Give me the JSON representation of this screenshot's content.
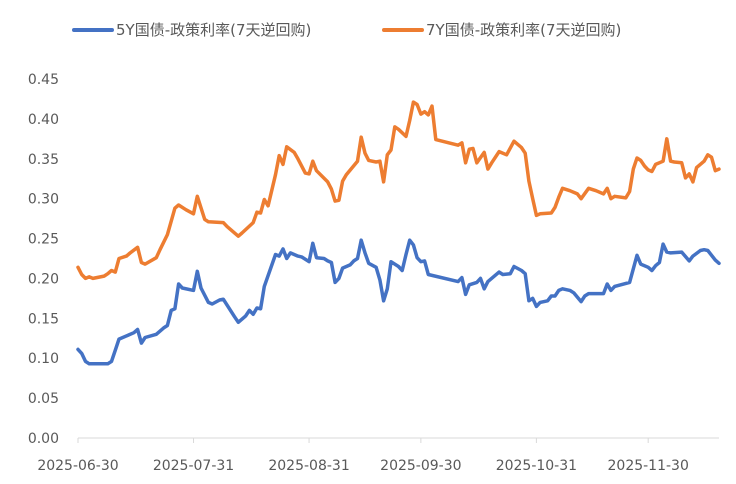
{
  "chart_data": {
    "type": "line",
    "title": "",
    "xlabel": "",
    "ylabel": "",
    "ylim": [
      0,
      0.45
    ],
    "yticks": [
      "0.00",
      "0.05",
      "0.10",
      "0.15",
      "0.20",
      "0.25",
      "0.30",
      "0.35",
      "0.40",
      "0.45"
    ],
    "xlim": [
      "2025-06-30",
      "2025-12-19"
    ],
    "xticks": [
      "2025-06-30",
      "2025-07-31",
      "2025-08-31",
      "2025-09-30",
      "2025-10-31",
      "2025-11-30"
    ],
    "grid": false,
    "legend_position": "top",
    "series": [
      {
        "name": "5Y国债-政策利率(7天逆回购)",
        "color": "#4472C4",
        "points": [
          [
            "2025-06-30",
            0.111
          ],
          [
            "2025-07-01",
            0.106
          ],
          [
            "2025-07-02",
            0.096
          ],
          [
            "2025-07-03",
            0.093
          ],
          [
            "2025-07-07",
            0.093
          ],
          [
            "2025-07-08",
            0.093
          ],
          [
            "2025-07-09",
            0.096
          ],
          [
            "2025-07-10",
            0.11
          ],
          [
            "2025-07-11",
            0.124
          ],
          [
            "2025-07-15",
            0.132
          ],
          [
            "2025-07-16",
            0.136
          ],
          [
            "2025-07-17",
            0.119
          ],
          [
            "2025-07-18",
            0.126
          ],
          [
            "2025-07-21",
            0.13
          ],
          [
            "2025-07-23",
            0.138
          ],
          [
            "2025-07-24",
            0.141
          ],
          [
            "2025-07-25",
            0.16
          ],
          [
            "2025-07-26",
            0.162
          ],
          [
            "2025-07-27",
            0.193
          ],
          [
            "2025-07-28",
            0.188
          ],
          [
            "2025-07-31",
            0.185
          ],
          [
            "2025-08-01",
            0.209
          ],
          [
            "2025-08-02",
            0.188
          ],
          [
            "2025-08-04",
            0.17
          ],
          [
            "2025-08-05",
            0.168
          ],
          [
            "2025-08-07",
            0.173
          ],
          [
            "2025-08-08",
            0.174
          ],
          [
            "2025-08-11",
            0.152
          ],
          [
            "2025-08-12",
            0.145
          ],
          [
            "2025-08-14",
            0.153
          ],
          [
            "2025-08-15",
            0.16
          ],
          [
            "2025-08-16",
            0.155
          ],
          [
            "2025-08-17",
            0.163
          ],
          [
            "2025-08-18",
            0.162
          ],
          [
            "2025-08-19",
            0.19
          ],
          [
            "2025-08-22",
            0.23
          ],
          [
            "2025-08-23",
            0.228
          ],
          [
            "2025-08-24",
            0.237
          ],
          [
            "2025-08-25",
            0.225
          ],
          [
            "2025-08-26",
            0.232
          ],
          [
            "2025-08-28",
            0.228
          ],
          [
            "2025-08-29",
            0.227
          ],
          [
            "2025-08-31",
            0.221
          ],
          [
            "2025-09-01",
            0.244
          ],
          [
            "2025-09-02",
            0.226
          ],
          [
            "2025-09-04",
            0.225
          ],
          [
            "2025-09-05",
            0.222
          ],
          [
            "2025-09-06",
            0.22
          ],
          [
            "2025-09-07",
            0.195
          ],
          [
            "2025-09-08",
            0.2
          ],
          [
            "2025-09-09",
            0.213
          ],
          [
            "2025-09-11",
            0.217
          ],
          [
            "2025-09-12",
            0.222
          ],
          [
            "2025-09-13",
            0.225
          ],
          [
            "2025-09-14",
            0.248
          ],
          [
            "2025-09-15",
            0.232
          ],
          [
            "2025-09-16",
            0.219
          ],
          [
            "2025-09-18",
            0.214
          ],
          [
            "2025-09-19",
            0.198
          ],
          [
            "2025-09-20",
            0.172
          ],
          [
            "2025-09-21",
            0.187
          ],
          [
            "2025-09-22",
            0.221
          ],
          [
            "2025-09-24",
            0.215
          ],
          [
            "2025-09-25",
            0.21
          ],
          [
            "2025-09-26",
            0.23
          ],
          [
            "2025-09-27",
            0.248
          ],
          [
            "2025-09-28",
            0.242
          ],
          [
            "2025-09-29",
            0.226
          ],
          [
            "2025-09-30",
            0.221
          ],
          [
            "2025-10-01",
            0.222
          ],
          [
            "2025-10-02",
            0.205
          ],
          [
            "2025-10-10",
            0.196
          ],
          [
            "2025-10-11",
            0.201
          ],
          [
            "2025-10-12",
            0.18
          ],
          [
            "2025-10-13",
            0.192
          ],
          [
            "2025-10-15",
            0.195
          ],
          [
            "2025-10-16",
            0.2
          ],
          [
            "2025-10-17",
            0.187
          ],
          [
            "2025-10-18",
            0.196
          ],
          [
            "2025-10-21",
            0.208
          ],
          [
            "2025-10-22",
            0.205
          ],
          [
            "2025-10-24",
            0.206
          ],
          [
            "2025-10-25",
            0.215
          ],
          [
            "2025-10-27",
            0.21
          ],
          [
            "2025-10-28",
            0.206
          ],
          [
            "2025-10-29",
            0.172
          ],
          [
            "2025-10-30",
            0.175
          ],
          [
            "2025-10-31",
            0.165
          ],
          [
            "2025-11-01",
            0.17
          ],
          [
            "2025-11-03",
            0.172
          ],
          [
            "2025-11-04",
            0.178
          ],
          [
            "2025-11-05",
            0.178
          ],
          [
            "2025-11-06",
            0.185
          ],
          [
            "2025-11-07",
            0.187
          ],
          [
            "2025-11-09",
            0.185
          ],
          [
            "2025-11-10",
            0.182
          ],
          [
            "2025-11-12",
            0.171
          ],
          [
            "2025-11-13",
            0.178
          ],
          [
            "2025-11-14",
            0.181
          ],
          [
            "2025-11-18",
            0.181
          ],
          [
            "2025-11-19",
            0.193
          ],
          [
            "2025-11-20",
            0.185
          ],
          [
            "2025-11-21",
            0.19
          ],
          [
            "2025-11-25",
            0.195
          ],
          [
            "2025-11-27",
            0.229
          ],
          [
            "2025-11-28",
            0.218
          ],
          [
            "2025-11-30",
            0.214
          ],
          [
            "2025-12-01",
            0.21
          ],
          [
            "2025-12-02",
            0.216
          ],
          [
            "2025-12-03",
            0.22
          ],
          [
            "2025-12-04",
            0.243
          ],
          [
            "2025-12-05",
            0.233
          ],
          [
            "2025-12-06",
            0.232
          ],
          [
            "2025-12-09",
            0.233
          ],
          [
            "2025-12-11",
            0.222
          ],
          [
            "2025-12-12",
            0.228
          ],
          [
            "2025-12-14",
            0.235
          ],
          [
            "2025-12-15",
            0.236
          ],
          [
            "2025-12-16",
            0.235
          ],
          [
            "2025-12-18",
            0.223
          ],
          [
            "2025-12-19",
            0.219
          ]
        ]
      },
      {
        "name": "7Y国债-政策利率(7天逆回购)",
        "color": "#ED7D31",
        "points": [
          [
            "2025-06-30",
            0.214
          ],
          [
            "2025-07-01",
            0.205
          ],
          [
            "2025-07-02",
            0.2
          ],
          [
            "2025-07-03",
            0.202
          ],
          [
            "2025-07-04",
            0.2
          ],
          [
            "2025-07-07",
            0.203
          ],
          [
            "2025-07-08",
            0.206
          ],
          [
            "2025-07-09",
            0.21
          ],
          [
            "2025-07-10",
            0.208
          ],
          [
            "2025-07-11",
            0.225
          ],
          [
            "2025-07-13",
            0.228
          ],
          [
            "2025-07-14",
            0.232
          ],
          [
            "2025-07-16",
            0.239
          ],
          [
            "2025-07-17",
            0.22
          ],
          [
            "2025-07-18",
            0.218
          ],
          [
            "2025-07-21",
            0.226
          ],
          [
            "2025-07-22",
            0.236
          ],
          [
            "2025-07-24",
            0.255
          ],
          [
            "2025-07-26",
            0.288
          ],
          [
            "2025-07-27",
            0.292
          ],
          [
            "2025-07-29",
            0.286
          ],
          [
            "2025-07-31",
            0.281
          ],
          [
            "2025-08-01",
            0.303
          ],
          [
            "2025-08-03",
            0.274
          ],
          [
            "2025-08-04",
            0.271
          ],
          [
            "2025-08-08",
            0.27
          ],
          [
            "2025-08-09",
            0.265
          ],
          [
            "2025-08-12",
            0.253
          ],
          [
            "2025-08-13",
            0.257
          ],
          [
            "2025-08-16",
            0.27
          ],
          [
            "2025-08-17",
            0.283
          ],
          [
            "2025-08-18",
            0.282
          ],
          [
            "2025-08-19",
            0.299
          ],
          [
            "2025-08-20",
            0.291
          ],
          [
            "2025-08-22",
            0.33
          ],
          [
            "2025-08-23",
            0.354
          ],
          [
            "2025-08-24",
            0.343
          ],
          [
            "2025-08-25",
            0.365
          ],
          [
            "2025-08-27",
            0.358
          ],
          [
            "2025-08-28",
            0.35
          ],
          [
            "2025-08-30",
            0.332
          ],
          [
            "2025-08-31",
            0.331
          ],
          [
            "2025-09-01",
            0.347
          ],
          [
            "2025-09-02",
            0.335
          ],
          [
            "2025-09-05",
            0.321
          ],
          [
            "2025-09-06",
            0.312
          ],
          [
            "2025-09-07",
            0.297
          ],
          [
            "2025-09-08",
            0.298
          ],
          [
            "2025-09-09",
            0.322
          ],
          [
            "2025-09-10",
            0.33
          ],
          [
            "2025-09-13",
            0.347
          ],
          [
            "2025-09-14",
            0.377
          ],
          [
            "2025-09-15",
            0.357
          ],
          [
            "2025-09-16",
            0.348
          ],
          [
            "2025-09-18",
            0.346
          ],
          [
            "2025-09-19",
            0.347
          ],
          [
            "2025-09-20",
            0.321
          ],
          [
            "2025-09-21",
            0.355
          ],
          [
            "2025-09-22",
            0.361
          ],
          [
            "2025-09-23",
            0.39
          ],
          [
            "2025-09-24",
            0.387
          ],
          [
            "2025-09-26",
            0.378
          ],
          [
            "2025-09-27",
            0.398
          ],
          [
            "2025-09-28",
            0.421
          ],
          [
            "2025-09-29",
            0.418
          ],
          [
            "2025-09-30",
            0.406
          ],
          [
            "2025-10-01",
            0.409
          ],
          [
            "2025-10-02",
            0.405
          ],
          [
            "2025-10-03",
            0.416
          ],
          [
            "2025-10-04",
            0.374
          ],
          [
            "2025-10-10",
            0.367
          ],
          [
            "2025-10-11",
            0.37
          ],
          [
            "2025-10-12",
            0.345
          ],
          [
            "2025-10-13",
            0.362
          ],
          [
            "2025-10-14",
            0.363
          ],
          [
            "2025-10-15",
            0.345
          ],
          [
            "2025-10-17",
            0.358
          ],
          [
            "2025-10-18",
            0.337
          ],
          [
            "2025-10-19",
            0.345
          ],
          [
            "2025-10-21",
            0.359
          ],
          [
            "2025-10-23",
            0.355
          ],
          [
            "2025-10-25",
            0.372
          ],
          [
            "2025-10-27",
            0.364
          ],
          [
            "2025-10-28",
            0.357
          ],
          [
            "2025-10-29",
            0.322
          ],
          [
            "2025-10-30",
            0.3
          ],
          [
            "2025-10-31",
            0.279
          ],
          [
            "2025-11-01",
            0.281
          ],
          [
            "2025-11-04",
            0.282
          ],
          [
            "2025-11-05",
            0.289
          ],
          [
            "2025-11-06",
            0.302
          ],
          [
            "2025-11-07",
            0.313
          ],
          [
            "2025-11-09",
            0.31
          ],
          [
            "2025-11-11",
            0.306
          ],
          [
            "2025-11-12",
            0.3
          ],
          [
            "2025-11-14",
            0.313
          ],
          [
            "2025-11-16",
            0.31
          ],
          [
            "2025-11-18",
            0.306
          ],
          [
            "2025-11-19",
            0.313
          ],
          [
            "2025-11-20",
            0.3
          ],
          [
            "2025-11-21",
            0.303
          ],
          [
            "2025-11-24",
            0.301
          ],
          [
            "2025-11-25",
            0.309
          ],
          [
            "2025-11-26",
            0.337
          ],
          [
            "2025-11-27",
            0.351
          ],
          [
            "2025-11-28",
            0.348
          ],
          [
            "2025-11-29",
            0.341
          ],
          [
            "2025-11-30",
            0.336
          ],
          [
            "2025-12-01",
            0.334
          ],
          [
            "2025-12-02",
            0.343
          ],
          [
            "2025-12-04",
            0.347
          ],
          [
            "2025-12-05",
            0.375
          ],
          [
            "2025-12-06",
            0.347
          ],
          [
            "2025-12-07",
            0.346
          ],
          [
            "2025-12-09",
            0.345
          ],
          [
            "2025-12-10",
            0.326
          ],
          [
            "2025-12-11",
            0.331
          ],
          [
            "2025-12-12",
            0.321
          ],
          [
            "2025-12-13",
            0.339
          ],
          [
            "2025-12-15",
            0.347
          ],
          [
            "2025-12-16",
            0.355
          ],
          [
            "2025-12-17",
            0.352
          ],
          [
            "2025-12-18",
            0.335
          ],
          [
            "2025-12-19",
            0.337
          ]
        ]
      }
    ]
  }
}
